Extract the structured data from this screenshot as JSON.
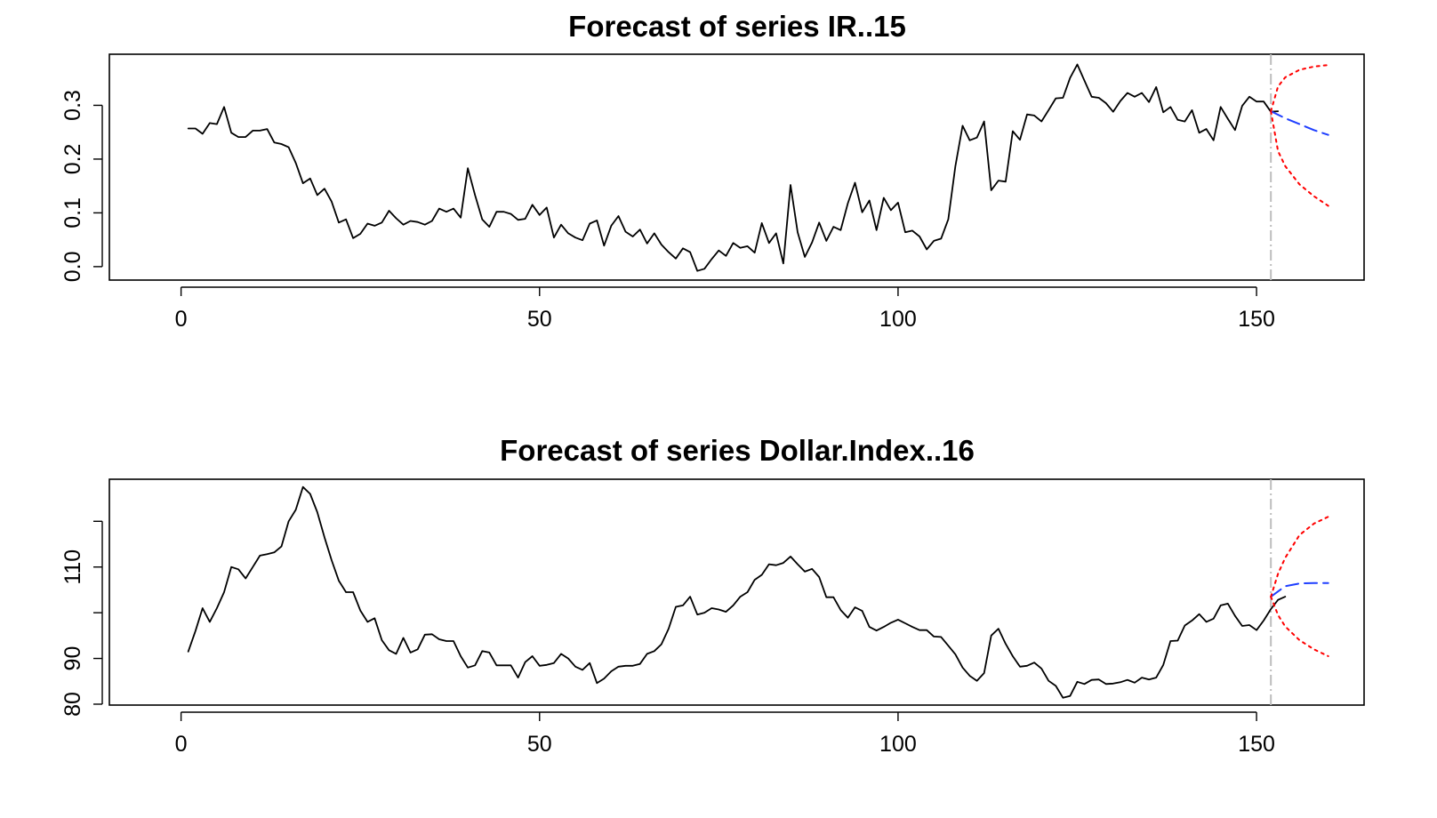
{
  "chart_data": [
    {
      "type": "line",
      "title": "Forecast of series IR..15",
      "xlabel": "",
      "ylabel": "",
      "xlim": [
        -10,
        165
      ],
      "ylim": [
        -0.025,
        0.395
      ],
      "xticks": [
        0,
        50,
        100,
        150
      ],
      "xtick_labels": [
        "0",
        "50",
        "100",
        "150"
      ],
      "yticks": [
        0.0,
        0.1,
        0.2,
        0.3
      ],
      "ytick_labels": [
        "0.0",
        "0.1",
        "0.2",
        "0.3"
      ],
      "forecast_origin": 152,
      "grid": false,
      "series": [
        {
          "role": "observed",
          "color": "#000000",
          "style": "solid",
          "x_start": 1,
          "values": [
            0.257,
            0.257,
            0.247,
            0.267,
            0.265,
            0.297,
            0.249,
            0.241,
            0.241,
            0.253,
            0.253,
            0.256,
            0.231,
            0.228,
            0.222,
            0.193,
            0.155,
            0.164,
            0.133,
            0.145,
            0.121,
            0.082,
            0.088,
            0.053,
            0.061,
            0.08,
            0.076,
            0.082,
            0.104,
            0.09,
            0.078,
            0.085,
            0.083,
            0.078,
            0.085,
            0.108,
            0.102,
            0.108,
            0.091,
            0.183,
            0.133,
            0.088,
            0.074,
            0.102,
            0.102,
            0.098,
            0.087,
            0.089,
            0.115,
            0.096,
            0.11,
            0.054,
            0.078,
            0.062,
            0.054,
            0.049,
            0.08,
            0.086,
            0.039,
            0.076,
            0.094,
            0.065,
            0.056,
            0.069,
            0.043,
            0.062,
            0.041,
            0.027,
            0.015,
            0.034,
            0.027,
            -0.008,
            -0.004,
            0.014,
            0.03,
            0.02,
            0.044,
            0.035,
            0.038,
            0.026,
            0.081,
            0.044,
            0.062,
            0.006,
            0.152,
            0.064,
            0.018,
            0.045,
            0.082,
            0.048,
            0.074,
            0.068,
            0.118,
            0.156,
            0.101,
            0.123,
            0.068,
            0.128,
            0.105,
            0.119,
            0.064,
            0.067,
            0.056,
            0.032,
            0.048,
            0.052,
            0.088,
            0.187,
            0.262,
            0.235,
            0.24,
            0.27,
            0.142,
            0.16,
            0.158,
            0.252,
            0.236,
            0.283,
            0.281,
            0.27,
            0.291,
            0.313,
            0.314,
            0.351,
            0.376,
            0.346,
            0.316,
            0.314,
            0.304,
            0.288,
            0.308,
            0.323,
            0.316,
            0.323,
            0.306,
            0.334,
            0.287,
            0.297,
            0.273,
            0.27,
            0.291,
            0.249,
            0.256,
            0.235,
            0.297,
            0.275,
            0.254,
            0.299,
            0.316,
            0.307,
            0.307,
            0.288,
            0.289
          ]
        },
        {
          "role": "forecast",
          "color": "#1f3fff",
          "style": "dashed",
          "x": [
            152,
            154,
            156,
            158,
            160
          ],
          "values": [
            0.289,
            0.276,
            0.265,
            0.254,
            0.245
          ]
        },
        {
          "role": "upper-bound",
          "color": "#ff0000",
          "style": "dotted",
          "x": [
            152,
            153,
            154,
            156,
            158,
            160
          ],
          "values": [
            0.289,
            0.335,
            0.352,
            0.366,
            0.372,
            0.375
          ]
        },
        {
          "role": "lower-bound",
          "color": "#ff0000",
          "style": "dotted",
          "x": [
            152,
            153,
            154,
            156,
            158,
            160
          ],
          "values": [
            0.289,
            0.215,
            0.187,
            0.153,
            0.131,
            0.113
          ]
        }
      ]
    },
    {
      "type": "line",
      "title": "Forecast of series Dollar.Index..16",
      "xlabel": "",
      "ylabel": "",
      "xlim": [
        -10,
        165
      ],
      "ylim": [
        79.8,
        129.2
      ],
      "xticks": [
        0,
        50,
        100,
        150
      ],
      "xtick_labels": [
        "0",
        "50",
        "100",
        "150"
      ],
      "yticks": [
        80,
        90,
        100,
        110,
        120
      ],
      "ytick_labels": [
        "80",
        "90",
        "",
        "110",
        ""
      ],
      "forecast_origin": 152,
      "grid": false,
      "series": [
        {
          "role": "observed",
          "color": "#000000",
          "style": "solid",
          "x_start": 1,
          "values": [
            91.5,
            96,
            101,
            98,
            101,
            104.5,
            110,
            109.5,
            107.5,
            110,
            112.5,
            112.8,
            113.2,
            114.5,
            120,
            122.5,
            127.5,
            126,
            122,
            116.5,
            111.5,
            107,
            104.5,
            104.5,
            100.5,
            98,
            98.8,
            94,
            91.8,
            91,
            94.5,
            91.3,
            92,
            95.2,
            95.3,
            94.2,
            93.8,
            93.8,
            90.5,
            88,
            88.5,
            91.6,
            91.3,
            88.5,
            88.5,
            88.5,
            85.8,
            89.2,
            90.5,
            88.4,
            88.6,
            89,
            91,
            90,
            88.2,
            87.5,
            89,
            84.6,
            85.6,
            87.2,
            88.2,
            88.4,
            88.4,
            88.8,
            91,
            91.6,
            93.1,
            96.5,
            101.3,
            101.6,
            103.5,
            99.6,
            100,
            101,
            100.7,
            100.2,
            101.6,
            103.5,
            104.5,
            107.2,
            108.3,
            110.6,
            110.4,
            110.9,
            112.3,
            110.6,
            109,
            109.6,
            107.8,
            103.4,
            103.4,
            100.6,
            98.9,
            101.2,
            100.4,
            96.9,
            96.1,
            96.9,
            97.8,
            98.5,
            97.7,
            96.9,
            96.2,
            96.2,
            94.8,
            94.7,
            92.8,
            90.9,
            88,
            86.2,
            85.1,
            86.8,
            95,
            96.5,
            93.2,
            90.5,
            88.2,
            88.4,
            89.1,
            87.8,
            85.1,
            84,
            81.4,
            81.8,
            84.9,
            84.4,
            85.3,
            85.4,
            84.4,
            84.5,
            84.8,
            85.3,
            84.7,
            85.8,
            85.4,
            85.8,
            88.6,
            93.8,
            93.9,
            97.2,
            98.3,
            99.7,
            98,
            98.7,
            101.6,
            102,
            99.3,
            97.1,
            97.3,
            96.2,
            98.3,
            100.8,
            102.8,
            103.5
          ]
        },
        {
          "role": "forecast",
          "color": "#1f3fff",
          "style": "dashed",
          "x": [
            152,
            154,
            156,
            158,
            160
          ],
          "values": [
            103.5,
            105.8,
            106.4,
            106.5,
            106.5
          ]
        },
        {
          "role": "upper-bound",
          "color": "#ff0000",
          "style": "dotted",
          "x": [
            152,
            153,
            154,
            156,
            158,
            160
          ],
          "values": [
            103.5,
            108.5,
            112,
            117,
            119.5,
            121
          ]
        },
        {
          "role": "lower-bound",
          "color": "#ff0000",
          "style": "dotted",
          "x": [
            152,
            153,
            154,
            156,
            158,
            160
          ],
          "values": [
            103.5,
            99.5,
            97,
            94,
            92,
            90.5
          ]
        }
      ]
    }
  ]
}
